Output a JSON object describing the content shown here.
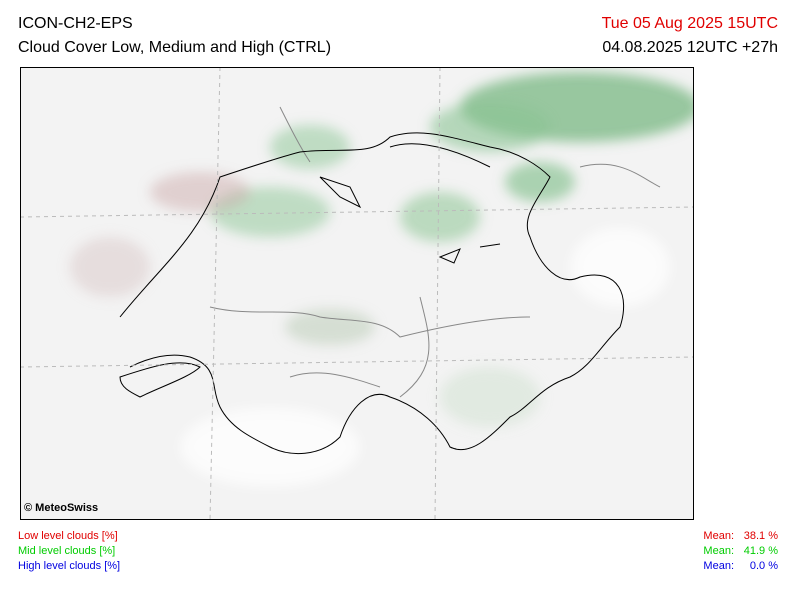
{
  "header": {
    "model": "ICON-CH2-EPS",
    "title": "Cloud Cover Low, Medium and High (CTRL)",
    "valid_time": "Tue 05 Aug 2025 15UTC",
    "run_lead": "04.08.2025 12UTC +27h"
  },
  "map": {
    "credit": "© MeteoSwiss"
  },
  "legend": [
    {
      "label": "Low level clouds [%]",
      "mean_label": "Mean:",
      "mean": "38.1 %"
    },
    {
      "label": "Mid level clouds [%]",
      "mean_label": "Mean:",
      "mean": "41.9 %"
    },
    {
      "label": "High level clouds [%]",
      "mean_label": "Mean:",
      "mean": "0.0 %"
    }
  ]
}
